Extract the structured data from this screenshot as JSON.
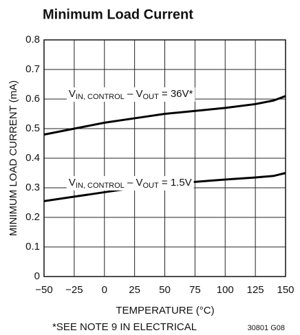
{
  "chart_data": {
    "type": "line",
    "title": "Minimum Load Current",
    "xlabel": "TEMPERATURE (°C)",
    "ylabel": "MINIMUM LOAD CURRENT (mA)",
    "footnote": "*SEE NOTE 9 IN ELECTRICAL",
    "code": "30801 G08",
    "x": [
      -50,
      -25,
      0,
      25,
      50,
      75,
      100,
      125,
      140,
      150
    ],
    "series": [
      {
        "color": "#000000",
        "values": [
          0.48,
          0.5,
          0.52,
          0.535,
          0.55,
          0.56,
          0.57,
          0.583,
          0.595,
          0.61
        ]
      },
      {
        "color": "#000000",
        "values": [
          0.255,
          0.27,
          0.285,
          0.3,
          0.31,
          0.32,
          0.328,
          0.335,
          0.34,
          0.35
        ]
      }
    ],
    "annotations": [
      {
        "x": -25,
        "y": 0.6,
        "parts": [
          {
            "text": "V"
          },
          {
            "text": "IN, CONTROL",
            "sub": true
          },
          {
            "text": " – V"
          },
          {
            "text": "OUT",
            "sub": true
          },
          {
            "text": " = 36V*"
          }
        ]
      },
      {
        "x": -25,
        "y": 0.3,
        "parts": [
          {
            "text": "V"
          },
          {
            "text": "IN, CONTROL",
            "sub": true
          },
          {
            "text": " – V"
          },
          {
            "text": "OUT",
            "sub": true
          },
          {
            "text": " = 1.5V"
          }
        ]
      }
    ],
    "xlim": [
      -50,
      150
    ],
    "xticks": [
      {
        "value": -50,
        "label": "−50"
      },
      {
        "value": -25,
        "label": "−25"
      },
      0,
      25,
      50,
      75,
      100,
      125,
      150
    ],
    "ylim": [
      0,
      0.8
    ],
    "yticks": [
      0,
      0.1,
      0.2,
      0.3,
      0.4,
      0.5,
      0.6,
      0.7,
      0.8
    ],
    "grid": true
  }
}
